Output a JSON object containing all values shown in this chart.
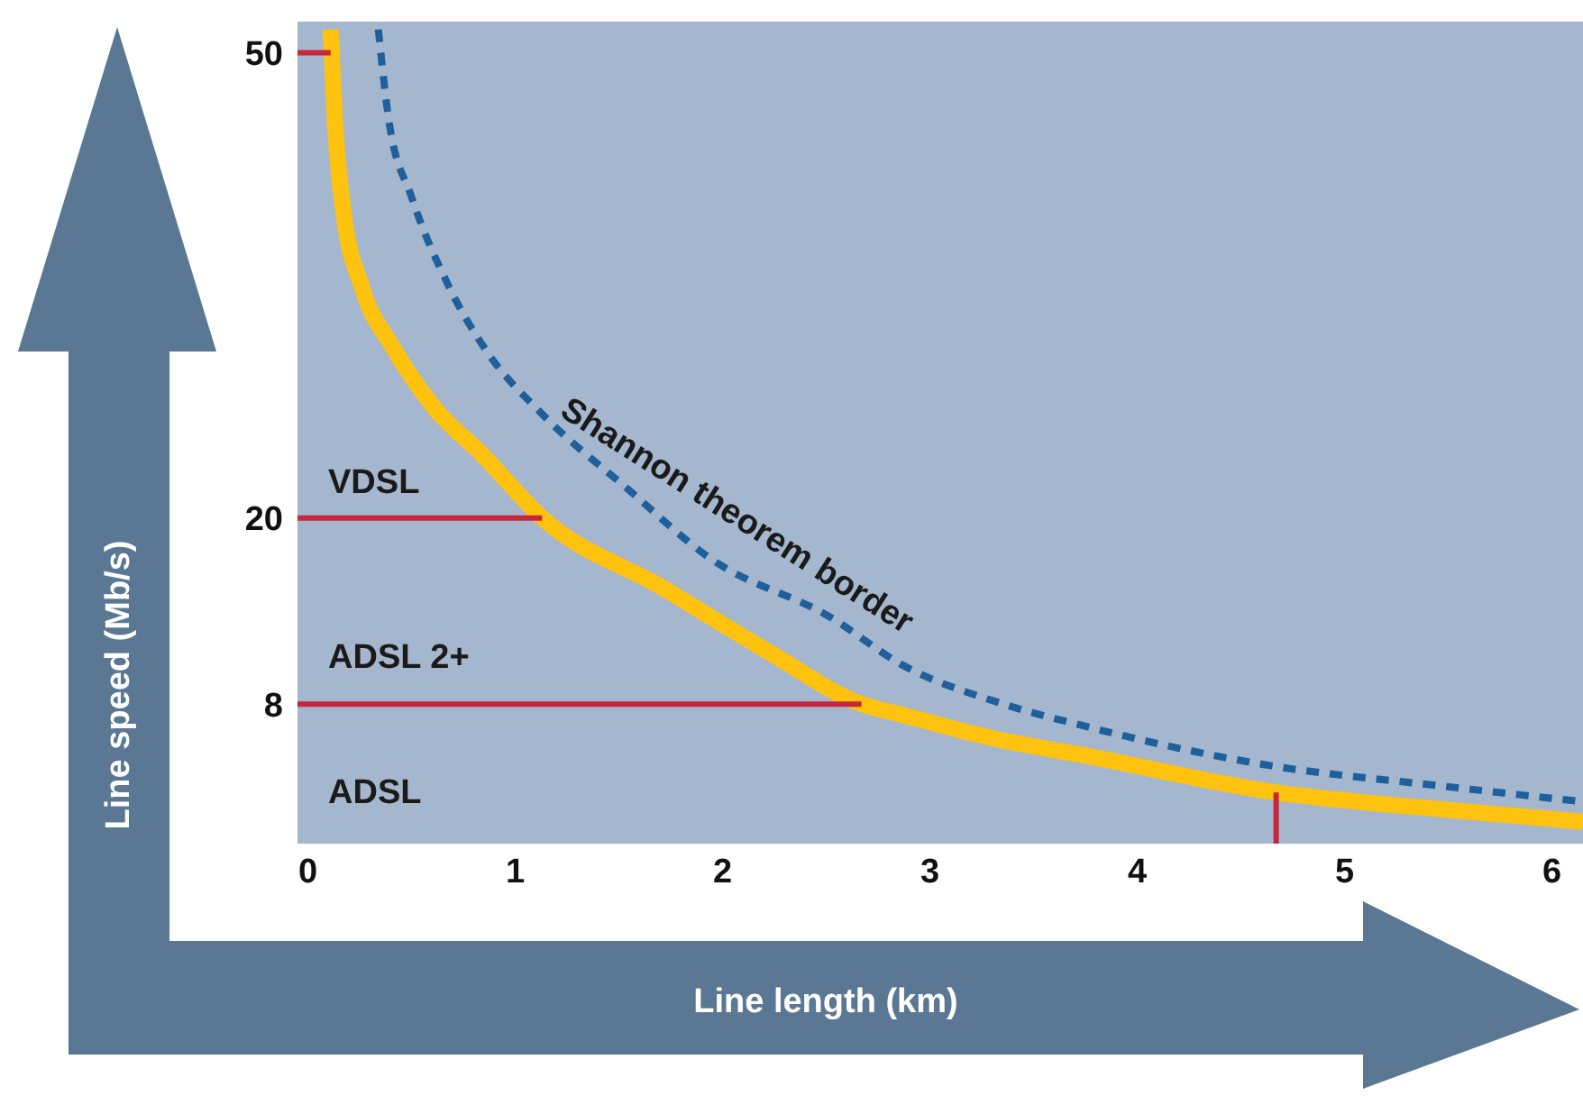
{
  "chart_data": {
    "type": "line",
    "xlabel": "Line length (km)",
    "ylabel": "Line speed (Mb/s)",
    "xlim": [
      -0.05,
      6.15
    ],
    "ylim": [
      -1,
      52
    ],
    "xticks": [
      0,
      1,
      2,
      3,
      4,
      5,
      6
    ],
    "yticks": [
      8,
      20,
      50
    ],
    "series": [
      {
        "color": "#ffc20e",
        "x": [
          0.11,
          0.13,
          0.17,
          0.26,
          0.41,
          0.61,
          0.84,
          1.13,
          1.71,
          2.23,
          2.67,
          2.87,
          3.3,
          3.74,
          4.67,
          5.48,
          6.15
        ],
        "values": [
          51.5,
          45.7,
          39.9,
          34.9,
          31,
          27.1,
          24.1,
          20,
          15.5,
          11.3,
          8,
          7.3,
          5.8,
          4.7,
          2.3,
          1.2,
          0.4
        ]
      },
      {
        "name": "Shannon theorem border",
        "color": "#1f5f9c",
        "line_style": "dashed",
        "x": [
          0.34,
          0.39,
          0.5,
          0.67,
          0.87,
          1.13,
          1.54,
          1.94,
          2.52,
          2.87,
          3.33,
          3.74,
          4.61,
          5.48,
          6.15
        ],
        "values": [
          51.5,
          45.7,
          40.7,
          35.2,
          30.6,
          26.7,
          21.9,
          17.4,
          13.6,
          10.5,
          8.1,
          6.6,
          4.1,
          2.7,
          1.7
        ]
      },
      {
        "color": "#c8263c",
        "x": [
          -0.05,
          0.11
        ],
        "values": [
          50,
          50
        ]
      },
      {
        "color": "#c8263c",
        "x": [
          -0.05,
          1.13
        ],
        "values": [
          20,
          20
        ]
      },
      {
        "color": "#c8263c",
        "x": [
          -0.05,
          2.67
        ],
        "values": [
          8,
          8
        ]
      },
      {
        "color": "#c8263c",
        "x": [
          4.67,
          4.67
        ],
        "values": [
          -1,
          2.3
        ]
      }
    ],
    "annotations": [
      "VDSL",
      "ADSL 2+",
      "ADSL"
    ]
  }
}
